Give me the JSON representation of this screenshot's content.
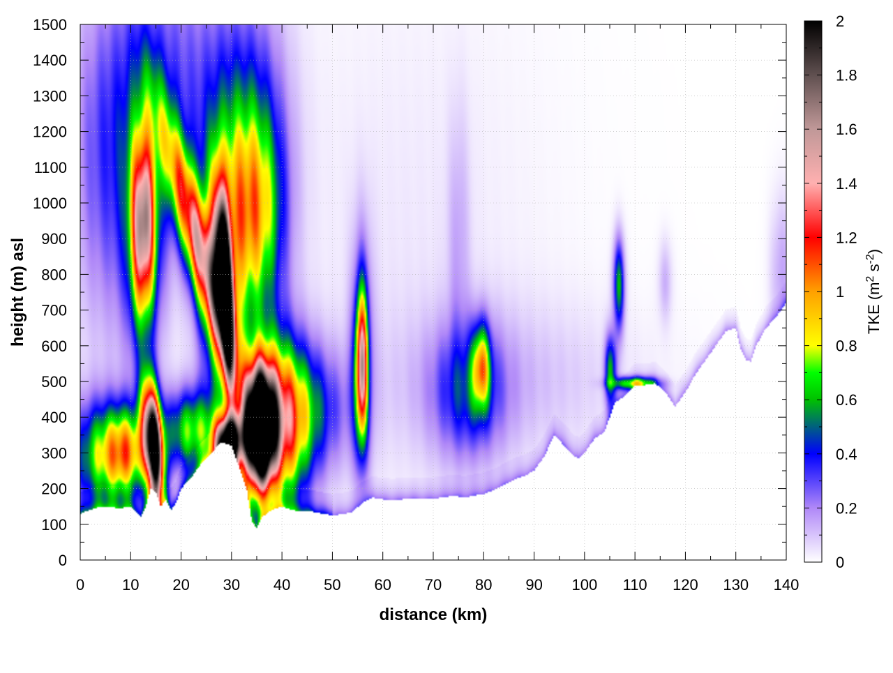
{
  "chart_data": {
    "type": "heatmap",
    "title": "",
    "xlabel": "distance (km)",
    "ylabel": "height (m) asl",
    "xlim": [
      0,
      140
    ],
    "ylim": [
      0,
      1500
    ],
    "x_ticks": [
      0,
      10,
      20,
      30,
      40,
      50,
      60,
      70,
      80,
      90,
      100,
      110,
      120,
      130,
      140
    ],
    "y_ticks": [
      0,
      100,
      200,
      300,
      400,
      500,
      600,
      700,
      800,
      900,
      1000,
      1100,
      1200,
      1300,
      1400,
      1500
    ],
    "grid": true,
    "colorbar": {
      "label": "TKE (m",
      "label_sup1": "2",
      "label_mid": " s",
      "label_sup2": "-2",
      "label_end": ")",
      "range": [
        0,
        2
      ],
      "ticks": [
        0,
        0.2,
        0.4,
        0.6,
        0.8,
        1,
        1.2,
        1.4,
        1.6,
        1.8,
        2
      ],
      "tick_labels": [
        "0",
        "0.2",
        "0.4",
        "0.6",
        "0.8",
        "1",
        "1.2",
        "1.4",
        "1.6",
        "1.8",
        "2"
      ],
      "stops": [
        {
          "v": 0.0,
          "c": "#ffffff"
        },
        {
          "v": 0.2,
          "c": "#b088f8"
        },
        {
          "v": 0.4,
          "c": "#0000ff"
        },
        {
          "v": 0.6,
          "c": "#00c000"
        },
        {
          "v": 0.7,
          "c": "#00ff00"
        },
        {
          "v": 0.8,
          "c": "#ffff00"
        },
        {
          "v": 1.0,
          "c": "#ffa000"
        },
        {
          "v": 1.2,
          "c": "#ff0000"
        },
        {
          "v": 1.4,
          "c": "#ffb0b0"
        },
        {
          "v": 1.6,
          "c": "#c09898"
        },
        {
          "v": 1.8,
          "c": "#605050"
        },
        {
          "v": 2.0,
          "c": "#000000"
        }
      ]
    },
    "terrain": [
      [
        0,
        130
      ],
      [
        2,
        140
      ],
      [
        4,
        150
      ],
      [
        6,
        148
      ],
      [
        8,
        145
      ],
      [
        10,
        150
      ],
      [
        11,
        135
      ],
      [
        12,
        120
      ],
      [
        13,
        150
      ],
      [
        14,
        200
      ],
      [
        15,
        190
      ],
      [
        16,
        150
      ],
      [
        17,
        170
      ],
      [
        18,
        140
      ],
      [
        19,
        160
      ],
      [
        20,
        200
      ],
      [
        22,
        230
      ],
      [
        24,
        270
      ],
      [
        26,
        300
      ],
      [
        28,
        330
      ],
      [
        30,
        320
      ],
      [
        31,
        280
      ],
      [
        32,
        240
      ],
      [
        33,
        200
      ],
      [
        34,
        110
      ],
      [
        35,
        90
      ],
      [
        36,
        120
      ],
      [
        38,
        140
      ],
      [
        40,
        150
      ],
      [
        42,
        140
      ],
      [
        44,
        135
      ],
      [
        46,
        135
      ],
      [
        48,
        130
      ],
      [
        50,
        125
      ],
      [
        52,
        128
      ],
      [
        54,
        135
      ],
      [
        56,
        160
      ],
      [
        58,
        175
      ],
      [
        60,
        170
      ],
      [
        62,
        168
      ],
      [
        64,
        170
      ],
      [
        66,
        172
      ],
      [
        68,
        170
      ],
      [
        70,
        172
      ],
      [
        72,
        175
      ],
      [
        74,
        180
      ],
      [
        76,
        175
      ],
      [
        78,
        180
      ],
      [
        80,
        185
      ],
      [
        82,
        195
      ],
      [
        84,
        210
      ],
      [
        86,
        225
      ],
      [
        88,
        235
      ],
      [
        90,
        250
      ],
      [
        92,
        290
      ],
      [
        94,
        350
      ],
      [
        96,
        320
      ],
      [
        98,
        290
      ],
      [
        99,
        285
      ],
      [
        100,
        300
      ],
      [
        102,
        340
      ],
      [
        104,
        360
      ],
      [
        105,
        400
      ],
      [
        106,
        440
      ],
      [
        108,
        460
      ],
      [
        110,
        490
      ],
      [
        112,
        490
      ],
      [
        114,
        495
      ],
      [
        116,
        470
      ],
      [
        118,
        430
      ],
      [
        120,
        470
      ],
      [
        122,
        520
      ],
      [
        124,
        560
      ],
      [
        126,
        600
      ],
      [
        128,
        640
      ],
      [
        130,
        650
      ],
      [
        131,
        590
      ],
      [
        132,
        560
      ],
      [
        133,
        555
      ],
      [
        134,
        600
      ],
      [
        136,
        650
      ],
      [
        138,
        680
      ],
      [
        140,
        720
      ]
    ],
    "blobs": [
      {
        "x": 12.5,
        "y": 930,
        "sx": 1.6,
        "sy": 170,
        "v": 1.25
      },
      {
        "x": 12.5,
        "y": 950,
        "sx": 3.0,
        "sy": 290,
        "v": 0.35
      },
      {
        "x": 23.5,
        "y": 880,
        "sx": 2.2,
        "sy": 240,
        "v": 1.2,
        "tilt": -0.018
      },
      {
        "x": 28.6,
        "y": 770,
        "sx": 1.1,
        "sy": 170,
        "v": 2.2,
        "tilt": -0.004
      },
      {
        "x": 28.0,
        "y": 800,
        "sx": 3.0,
        "sy": 300,
        "v": 0.55
      },
      {
        "x": 34.5,
        "y": 960,
        "sx": 3.8,
        "sy": 200,
        "v": 0.7
      },
      {
        "x": 14.5,
        "y": 320,
        "sx": 1.3,
        "sy": 120,
        "v": 2.2,
        "tilt": -0.005
      },
      {
        "x": 9.0,
        "y": 300,
        "sx": 3.2,
        "sy": 90,
        "v": 0.95
      },
      {
        "x": 3.0,
        "y": 290,
        "sx": 3.5,
        "sy": 110,
        "v": 0.55
      },
      {
        "x": 29.5,
        "y": 330,
        "sx": 1.8,
        "sy": 50,
        "v": 2.0
      },
      {
        "x": 35.5,
        "y": 370,
        "sx": 2.0,
        "sy": 110,
        "v": 2.4
      },
      {
        "x": 38.5,
        "y": 380,
        "sx": 4.5,
        "sy": 160,
        "v": 1.25
      },
      {
        "x": 22.0,
        "y": 360,
        "sx": 4.0,
        "sy": 80,
        "v": 0.7
      },
      {
        "x": 55.8,
        "y": 540,
        "sx": 0.8,
        "sy": 140,
        "v": 1.2
      },
      {
        "x": 55.8,
        "y": 580,
        "sx": 1.5,
        "sy": 230,
        "v": 0.35
      },
      {
        "x": 79.5,
        "y": 540,
        "sx": 1.2,
        "sy": 80,
        "v": 0.75
      },
      {
        "x": 77.0,
        "y": 470,
        "sx": 5.0,
        "sy": 130,
        "v": 0.35
      },
      {
        "x": 106.8,
        "y": 770,
        "sx": 0.8,
        "sy": 90,
        "v": 0.55
      },
      {
        "x": 105.2,
        "y": 530,
        "sx": 0.8,
        "sy": 70,
        "v": 0.55
      },
      {
        "x": 110.0,
        "y": 495,
        "sx": 3.0,
        "sy": 12,
        "v": 0.7
      },
      {
        "x": 116.0,
        "y": 780,
        "sx": 1.0,
        "sy": 80,
        "v": 0.12
      },
      {
        "x": 139.0,
        "y": 800,
        "sx": 1.5,
        "sy": 150,
        "v": 0.15
      },
      {
        "x": 5.0,
        "y": 1100,
        "sx": 5.0,
        "sy": 350,
        "v": 0.25
      },
      {
        "x": 18.0,
        "y": 1300,
        "sx": 9.0,
        "sy": 300,
        "v": 0.3
      },
      {
        "x": 34.0,
        "y": 1150,
        "sx": 5.0,
        "sy": 300,
        "v": 0.35
      },
      {
        "x": 75.0,
        "y": 900,
        "sx": 1.5,
        "sy": 250,
        "v": 0.12
      },
      {
        "x": 84.0,
        "y": 500,
        "sx": 18.0,
        "sy": 150,
        "v": 0.1
      },
      {
        "x": 65.0,
        "y": 800,
        "sx": 20.0,
        "sy": 600,
        "v": 0.04
      },
      {
        "x": 45.0,
        "y": 420,
        "sx": 6.0,
        "sy": 120,
        "v": 0.35
      }
    ]
  }
}
